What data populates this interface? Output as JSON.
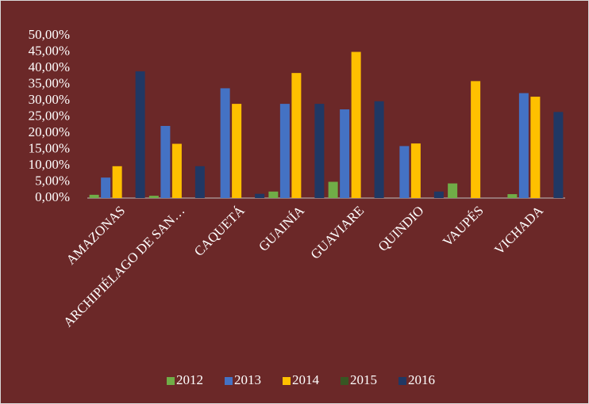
{
  "chart_data": {
    "type": "bar",
    "categories": [
      "AMAZONAS",
      "ARCHIPIÉLAGO DE SAN…",
      "CAQUETÁ",
      "GUAINÍA",
      "GUAVIARE",
      "QUINDIO",
      "VAUPÉS",
      "VICHADA"
    ],
    "series": [
      {
        "name": "2012",
        "color": "#70ad47",
        "values": [
          1,
          0.7,
          0,
          2,
          5,
          0,
          4.5,
          1.2
        ]
      },
      {
        "name": "2013",
        "color": "#4472c4",
        "values": [
          6.3,
          22.2,
          33.8,
          29,
          27.3,
          16,
          0,
          32.3
        ]
      },
      {
        "name": "2014",
        "color": "#ffc000",
        "values": [
          9.8,
          16.7,
          29,
          38.5,
          45,
          16.8,
          36,
          31.2
        ]
      },
      {
        "name": "2015",
        "color": "#375623",
        "values": [
          0,
          0,
          0,
          0,
          0,
          0,
          0,
          0
        ]
      },
      {
        "name": "2016",
        "color": "#203864",
        "values": [
          39,
          9.8,
          1.3,
          29,
          29.8,
          2,
          0,
          26.5
        ]
      }
    ],
    "ylim": [
      0,
      50
    ],
    "yticks": [
      {
        "value": 0,
        "label": "0,00%"
      },
      {
        "value": 5,
        "label": "5,00%"
      },
      {
        "value": 10,
        "label": "10,00%"
      },
      {
        "value": 15,
        "label": "15,00%"
      },
      {
        "value": 20,
        "label": "20,00%"
      },
      {
        "value": 25,
        "label": "25,00%"
      },
      {
        "value": 30,
        "label": "30,00%"
      },
      {
        "value": 35,
        "label": "35,00%"
      },
      {
        "value": 40,
        "label": "40,00%"
      },
      {
        "value": 45,
        "label": "45,00%"
      },
      {
        "value": 50,
        "label": "50,00%"
      }
    ],
    "legend": "bottom"
  }
}
